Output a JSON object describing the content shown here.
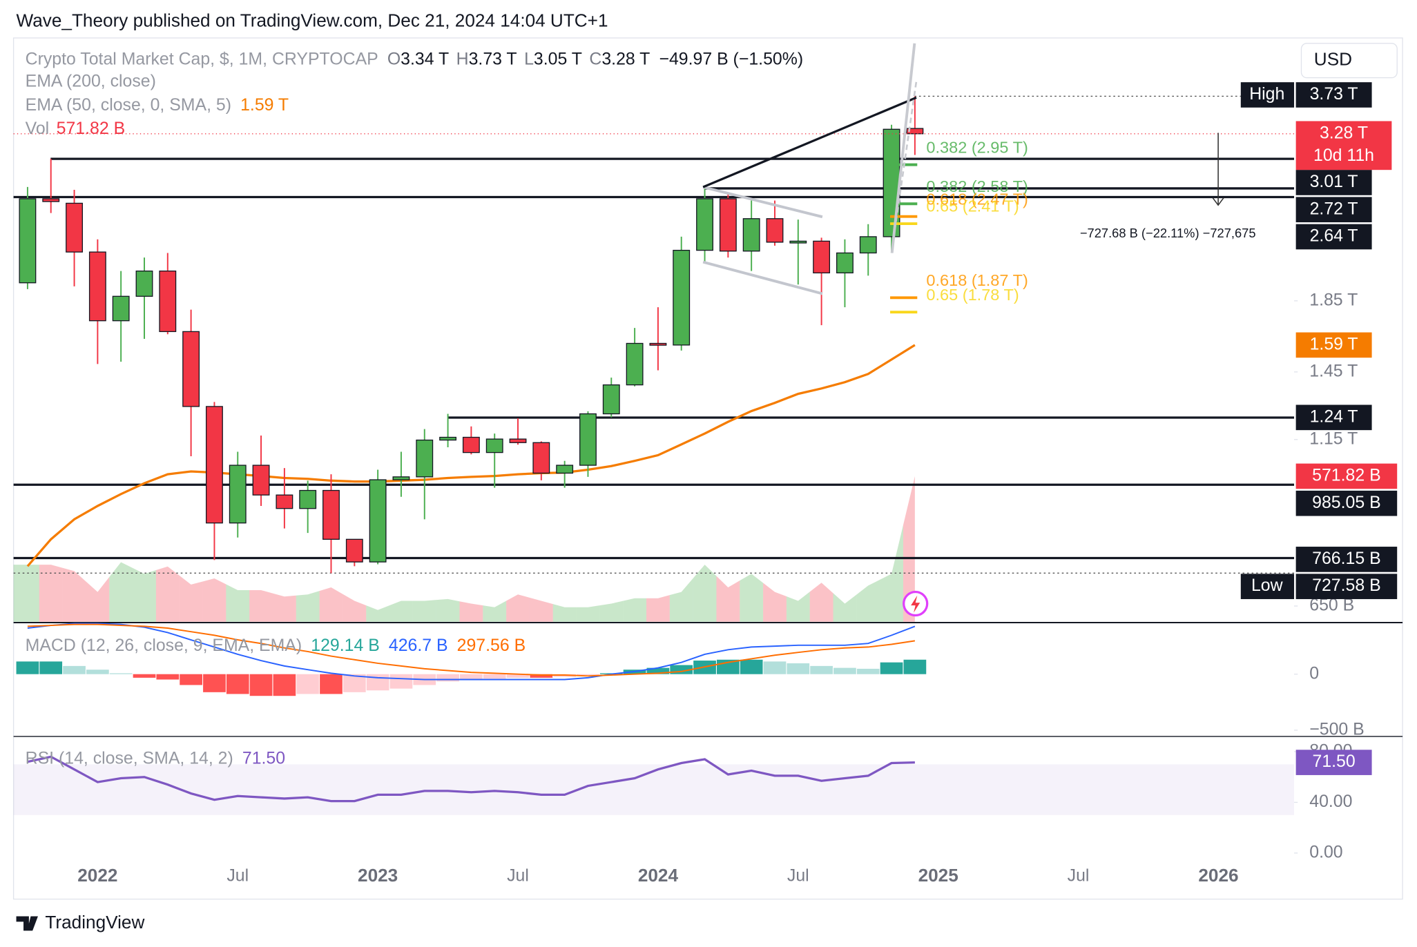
{
  "header": {
    "publisher": "Wave_Theory published on TradingView.com, Dec 21, 2024 14:04 UTC+1",
    "currency": "USD",
    "brand": "TradingView"
  },
  "chart_data": [
    {
      "type": "candlestick",
      "title": "Crypto Total Market Cap, $, 1M, CRYPTOCAP",
      "legend_ohlc": [
        {
          "key": "O",
          "label": "3.34 T"
        },
        {
          "key": "H",
          "label": "3.73 T"
        },
        {
          "key": "L",
          "label": "3.05 T"
        },
        {
          "key": "C",
          "label": "3.28 T"
        }
      ],
      "change": "−49.97 B (−1.50%)",
      "last_label": "3.28 T",
      "countdown": "10d 11h",
      "up_color": "#4caf50",
      "down_color": "#f23645",
      "x": [
        2021.75,
        2021.8333,
        2021.9167,
        2022,
        2022.0833,
        2022.1667,
        2022.25,
        2022.3333,
        2022.4167,
        2022.5,
        2022.5833,
        2022.6667,
        2022.75,
        2022.8333,
        2022.9167,
        2023,
        2023.0833,
        2023.1667,
        2023.25,
        2023.3333,
        2023.4167,
        2023.5,
        2023.5833,
        2023.6667,
        2023.75,
        2023.8333,
        2023.9167,
        2024,
        2024.0833,
        2024.1667,
        2024.25,
        2024.3333,
        2024.4167,
        2024.5,
        2024.5833,
        2024.6667,
        2024.75,
        2024.8333,
        2024.9167
      ],
      "open": [
        1968,
        2625,
        2585,
        2187,
        1728,
        1879,
        2049,
        1665,
        1288,
        864,
        1053,
        951,
        908,
        966,
        817,
        756,
        1002,
        1012,
        1148,
        1159,
        1100,
        1152,
        1138,
        1025,
        1053,
        1256,
        1387,
        1599,
        1590,
        2200,
        2625,
        2194,
        2452,
        2262,
        2270,
        2036,
        2180,
        2305,
        3340
      ],
      "high": [
        2733,
        3010,
        2707,
        2284,
        2049,
        2146,
        2180,
        1795,
        1308,
        1103,
        1166,
        1043,
        999,
        1021,
        817,
        1037,
        1103,
        1192,
        1256,
        1203,
        1174,
        1237,
        1143,
        1069,
        1267,
        1422,
        1686,
        1810,
        2305,
        2749,
        2666,
        2609,
        2609,
        2444,
        2297,
        2284,
        2406,
        3383,
        3730
      ],
      "low": [
        1926,
        2500,
        1944,
        1490,
        1502,
        1624,
        1650,
        1086,
        761,
        822,
        916,
        848,
        835,
        727.58,
        745,
        750,
        945,
        875,
        1120,
        1093,
        975,
        1130,
        1000,
        975,
        1012,
        1241,
        1380,
        1458,
        1560,
        2113,
        2146,
        2049,
        2235,
        1956,
        1702,
        1810,
        2017,
        2180,
        3050
      ],
      "close": [
        2625,
        2600,
        2187,
        1728,
        1879,
        2049,
        1665,
        1288,
        864,
        1053,
        951,
        908,
        966,
        817,
        756,
        1002,
        1012,
        1148,
        1159,
        1100,
        1152,
        1138,
        1025,
        1053,
        1256,
        1387,
        1599,
        1590,
        2200,
        2625,
        2194,
        2452,
        2262,
        2270,
        2036,
        2180,
        2305,
        3331,
        3280
      ],
      "xlim": [
        2021.7,
        2026.27
      ],
      "xticks": [
        2022,
        {
          "value": 2022.5,
          "label": "Jul"
        },
        2023,
        {
          "value": 2023.5,
          "label": "Jul"
        },
        2024,
        {
          "value": 2024.5,
          "label": "Jul"
        },
        2025,
        {
          "value": 2025.5,
          "label": "Jul"
        },
        2026
      ],
      "ylim": [
        616,
        4555
      ],
      "log_scale": true,
      "yticks": [
        {
          "value": 1850,
          "label": "1.85 T"
        },
        {
          "value": 1450,
          "label": "1.45 T"
        },
        {
          "value": 1150,
          "label": "1.15 T"
        },
        {
          "value": 650,
          "label": "650 B"
        }
      ],
      "indicators": [
        {
          "name": "EMA (200, close)"
        },
        {
          "name": "EMA (50, close, 0, SMA, 5)",
          "color": "#f57c00",
          "last_label": "1.59 T",
          "values": [
            745,
            817,
            875,
            916,
            954,
            990,
            1021,
            1031,
            1027,
            1021,
            1015,
            1008,
            1005,
            999,
            996,
            996,
            999,
            1002,
            1008,
            1012,
            1015,
            1021,
            1025,
            1027,
            1037,
            1050,
            1069,
            1090,
            1131,
            1174,
            1222,
            1268,
            1304,
            1345,
            1370,
            1400,
            1440,
            1513,
            1590
          ]
        }
      ],
      "volume": {
        "name": "Vol",
        "last_label": "571.82 B",
        "values": [
          224,
          224,
          199,
          117,
          234,
          188,
          217,
          146,
          170,
          124,
          124,
          99,
          107,
          135,
          82,
          46,
          82,
          82,
          89,
          71,
          57,
          107,
          82,
          57,
          57,
          71,
          92,
          92,
          117,
          224,
          135,
          188,
          117,
          82,
          153,
          71,
          142,
          188,
          571.82
        ]
      },
      "levels": [
        {
          "value": 3730,
          "label": "3.73 T",
          "tag": "High",
          "style": "dotted"
        },
        {
          "value": 3010,
          "label": "3.01 T",
          "style": "solid"
        },
        {
          "value": 2720,
          "label": "2.72 T",
          "style": "solid"
        },
        {
          "value": 2640,
          "label": "2.64 T",
          "style": "solid"
        },
        {
          "value": 1240,
          "label": "1.24 T",
          "style": "solid"
        },
        {
          "value": 985.05,
          "label": "985.05 B",
          "style": "solid"
        },
        {
          "value": 766.15,
          "label": "766.15 B",
          "style": "solid"
        },
        {
          "value": 727.58,
          "label": "727.58 B",
          "tag": "Low",
          "style": "dotted"
        }
      ],
      "fib_levels": [
        {
          "label": "0.382 (2.95 T)",
          "value": 2950,
          "color": "#4caf50"
        },
        {
          "label": "0.382 (2.58 T)",
          "value": 2580,
          "color": "#4caf50"
        },
        {
          "label": "0.618 (2.47 T)",
          "value": 2470,
          "color": "#ff9800"
        },
        {
          "label": "0.65 (2.41 T)",
          "value": 2410,
          "color": "#f9d71c"
        },
        {
          "label": "0.618 (1.87 T)",
          "value": 1870,
          "color": "#ff9800"
        },
        {
          "label": "0.65 (1.78 T)",
          "value": 1780,
          "color": "#f9d71c"
        }
      ],
      "measure_label": "−727.68 B (−22.11%) −727,675"
    },
    {
      "type": "macd",
      "title": "MACD (12, 26, close, 9, EMA, EMA)",
      "histogram": {
        "last_label": "129.14 B",
        "color": "#26a69a",
        "palette": [
          "#26a69a",
          "#b2dfdb",
          "#ffcdd2",
          "#ff5252"
        ],
        "values": [
          113,
          113,
          73,
          40,
          8,
          -32,
          -48,
          -97,
          -161,
          -177,
          -194,
          -194,
          -177,
          -177,
          -161,
          -145,
          -129,
          -97,
          -65,
          -48,
          -40,
          -32,
          -32,
          -24,
          -8,
          8,
          40,
          56,
          81,
          121,
          129,
          129,
          113,
          97,
          73,
          56,
          48,
          105,
          129.14
        ]
      },
      "macd": {
        "last_label": "426.7 B",
        "color": "#2962ff",
        "values": [
          411,
          435,
          452,
          452,
          444,
          419,
          371,
          306,
          242,
          177,
          121,
          73,
          40,
          8,
          -16,
          -32,
          -40,
          -48,
          -48,
          -48,
          -48,
          -48,
          -48,
          -48,
          -32,
          0,
          24,
          56,
          105,
          177,
          218,
          242,
          250,
          258,
          258,
          258,
          274,
          347,
          426.7
        ]
      },
      "signal": {
        "last_label": "297.56 B",
        "color": "#ff6d00",
        "values": [
          427,
          435,
          444,
          444,
          435,
          427,
          411,
          379,
          347,
          306,
          274,
          234,
          202,
          161,
          129,
          97,
          73,
          48,
          32,
          16,
          8,
          0,
          -8,
          -8,
          -16,
          -8,
          0,
          8,
          24,
          65,
          105,
          137,
          169,
          194,
          218,
          234,
          242,
          266,
          297.56
        ]
      },
      "ylim": [
        -556,
        452
      ],
      "yticks": [
        0,
        {
          "value": -500,
          "label": "−500 B"
        }
      ]
    },
    {
      "type": "line",
      "title": "RSI (14, close, SMA, 14, 2)",
      "color": "#7e57c2",
      "last_label": "71.50",
      "band": [
        30,
        70
      ],
      "values": [
        72,
        76,
        66,
        56,
        59,
        60,
        54,
        47,
        42,
        45,
        44,
        43,
        44,
        41,
        41,
        46,
        46,
        49,
        49,
        48,
        49,
        48,
        46,
        46,
        53,
        56,
        59,
        66,
        71,
        74,
        62,
        65,
        61,
        61,
        57,
        59,
        61,
        71,
        71.5
      ],
      "ylim": [
        -0.7,
        92
      ],
      "yticks": [
        {
          "value": 80,
          "label": "80.00"
        },
        {
          "value": 40,
          "label": "40.00"
        },
        {
          "value": 0,
          "label": "0.00"
        }
      ]
    }
  ]
}
